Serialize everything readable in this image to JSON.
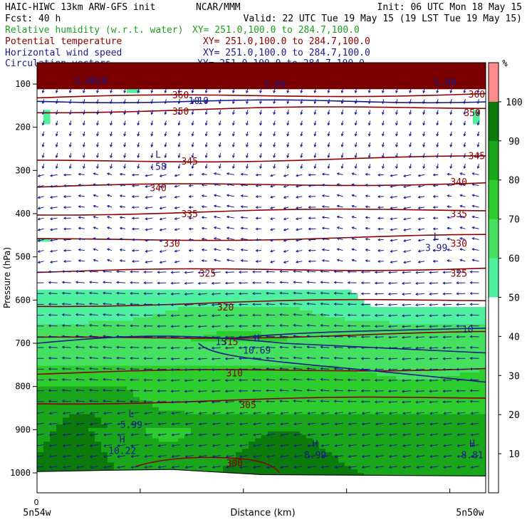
{
  "header": {
    "line1_left": "HAIC-HIWC 13km ARW-GFS init",
    "line1_mid": "NCAR/MMM",
    "line1_right": "Init: 06 UTC Mon 18 May 15",
    "line2_left": "Fcst:    40 h",
    "line2_right": "Valid: 22 UTC Tue 19 May 15 (19 LST Tue 19 May 15)",
    "fields": [
      {
        "name": "Relative humidity (w.r.t. water)",
        "xy": "XY= 251.0,100.0 to 284.7,100.0",
        "color": "#1e9e1e"
      },
      {
        "name": "Potential temperature",
        "xy": "XY= 251.0,100.0 to 284.7,100.0",
        "color": "#8b0000"
      },
      {
        "name": "Horizontal wind speed",
        "xy": "XY= 251.0,100.0 to 284.7,100.0",
        "color": "#1a1a8c"
      },
      {
        "name": "Circulation vectors",
        "xy": "XY= 251.0,100.0 to 284.7,100.0",
        "color": "#1a1a8c"
      }
    ]
  },
  "chart_data": {
    "type": "heatmap",
    "ylabel": "Pressure (hPa)",
    "xlabel": "Distance (km)",
    "x_left_label": "5n54w",
    "x_right_label": "5n50w",
    "x_origin_label": "0",
    "y_ticks": [
      100,
      200,
      300,
      400,
      500,
      600,
      700,
      800,
      900,
      1000
    ],
    "colorbar": {
      "unit": "%",
      "ticks": [
        10,
        20,
        30,
        40,
        50,
        60,
        70,
        80,
        90,
        100
      ],
      "bands": [
        {
          "from": 0,
          "to": 50,
          "color": "#ffffff"
        },
        {
          "from": 50,
          "to": 60,
          "color": "#4ff0a0"
        },
        {
          "from": 60,
          "to": 70,
          "color": "#45e060"
        },
        {
          "from": 70,
          "to": 80,
          "color": "#2ccd2c"
        },
        {
          "from": 80,
          "to": 90,
          "color": "#1aa61a"
        },
        {
          "from": 90,
          "to": 100,
          "color": "#0b7a0b"
        },
        {
          "from": 100,
          "to": 110,
          "color": "#ff8c8c"
        }
      ]
    },
    "theta_contours": [
      {
        "label": "360",
        "p": 132
      },
      {
        "label": "350",
        "p": 163
      },
      {
        "label": "345",
        "p": 280
      },
      {
        "label": "340",
        "p": 338
      },
      {
        "label": "335",
        "p": 400
      },
      {
        "label": "330",
        "p": 462
      },
      {
        "label": "325",
        "p": 535
      },
      {
        "label": "320",
        "p": 612
      },
      {
        "label": "315",
        "p": 690
      },
      {
        "label": "310",
        "p": 770
      },
      {
        "label": "305",
        "p": 838
      }
    ],
    "theta_labels": [
      {
        "text": "360",
        "x": 0.32,
        "p": 125
      },
      {
        "text": "360",
        "x": 0.98,
        "p": 123
      },
      {
        "text": "350",
        "x": 0.32,
        "p": 163
      },
      {
        "text": "350",
        "x": 0.97,
        "p": 166
      },
      {
        "text": "345",
        "x": 0.34,
        "p": 278
      },
      {
        "text": "345",
        "x": 0.98,
        "p": 266
      },
      {
        "text": "340",
        "x": 0.27,
        "p": 340
      },
      {
        "text": "340",
        "x": 0.94,
        "p": 326
      },
      {
        "text": "335",
        "x": 0.34,
        "p": 400
      },
      {
        "text": "335",
        "x": 0.94,
        "p": 400
      },
      {
        "text": "330",
        "x": 0.3,
        "p": 468
      },
      {
        "text": "330",
        "x": 0.94,
        "p": 468
      },
      {
        "text": "325",
        "x": 0.38,
        "p": 538
      },
      {
        "text": "325",
        "x": 0.94,
        "p": 538
      },
      {
        "text": "320",
        "x": 0.42,
        "p": 616
      },
      {
        "text": "315",
        "x": 0.43,
        "p": 696
      },
      {
        "text": "310",
        "x": 0.44,
        "p": 768
      },
      {
        "text": "305",
        "x": 0.47,
        "p": 842
      },
      {
        "text": "300",
        "x": 0.44,
        "p": 977
      }
    ],
    "wind_contours": [
      {
        "label": "10",
        "p": 140
      },
      {
        "label": "10",
        "p": 700
      }
    ],
    "wind_labels": [
      {
        "text": "10",
        "x": 0.35,
        "p": 138
      },
      {
        "text": "10",
        "x": 0.96,
        "p": 667
      },
      {
        "text": "15",
        "x": 0.41,
        "p": 696
      }
    ],
    "annotations": [
      {
        "text": "L",
        "x": 0.27,
        "p": 262,
        "color": "#1a1a8c"
      },
      {
        "text": ".58",
        "x": 0.27,
        "p": 290,
        "color": "#1a1a8c"
      },
      {
        "text": "L",
        "x": 0.89,
        "p": 452,
        "color": "#1a1a8c"
      },
      {
        "text": "3.99",
        "x": 0.89,
        "p": 478,
        "color": "#1a1a8c"
      },
      {
        "text": "H",
        "x": 0.49,
        "p": 688,
        "color": "#1a1a8c"
      },
      {
        "text": "10.69",
        "x": 0.49,
        "p": 716,
        "color": "#1a1a8c"
      },
      {
        "text": "L",
        "x": 0.21,
        "p": 862,
        "color": "#1a1a8c"
      },
      {
        "text": "5.99",
        "x": 0.21,
        "p": 888,
        "color": "#1a1a8c"
      },
      {
        "text": "H",
        "x": 0.19,
        "p": 922,
        "color": "#1a1a8c"
      },
      {
        "text": "10.22",
        "x": 0.19,
        "p": 948,
        "color": "#1a1a8c"
      },
      {
        "text": "H",
        "x": 0.62,
        "p": 932,
        "color": "#1a1a8c"
      },
      {
        "text": "8.99",
        "x": 0.62,
        "p": 958,
        "color": "#1a1a8c"
      },
      {
        "text": "H",
        "x": 0.97,
        "p": 932,
        "color": "#1a1a8c"
      },
      {
        "text": "8.81",
        "x": 0.97,
        "p": 958,
        "color": "#1a1a8c"
      },
      {
        "text": "10",
        "x": 0.37,
        "p": 138,
        "color": "#1a1a8c"
      },
      {
        "text": "5.00",
        "x": 0.91,
        "p": 95,
        "color": "#1a1a8c"
      },
      {
        "text": "3.06",
        "x": 0.53,
        "p": 100,
        "color": "#1a1a8c"
      },
      {
        "text": "3.4H10",
        "x": 0.12,
        "p": 92,
        "color": "#1a1a8c"
      }
    ]
  }
}
